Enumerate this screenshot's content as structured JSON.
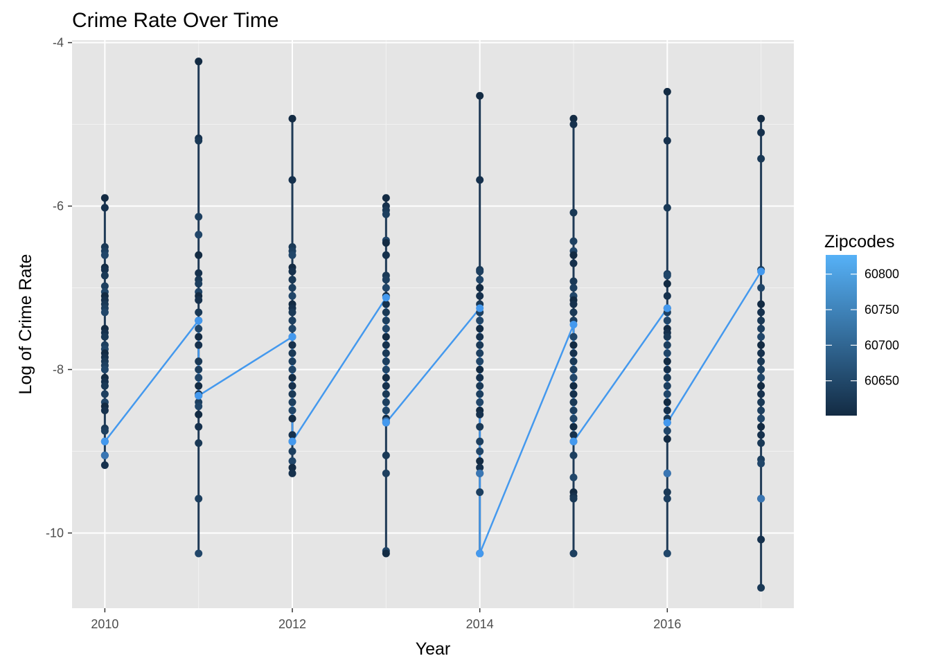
{
  "chart_data": {
    "type": "line",
    "title": "Crime Rate Over Time",
    "xlabel": "Year",
    "ylabel": "Log of Crime Rate",
    "xlim": [
      2009.65,
      2017.35
    ],
    "ylim": [
      -10.92,
      -3.97
    ],
    "x_ticks": [
      2010,
      2012,
      2014,
      2016
    ],
    "x_tick_labels": [
      "2010",
      "2012",
      "2014",
      "2016"
    ],
    "y_ticks": [
      -4,
      -6,
      -8,
      -10
    ],
    "y_tick_labels": [
      "-4",
      "-6",
      "-8",
      "-10"
    ],
    "grid": true,
    "panel_background": "#e5e5e5",
    "legend": {
      "title": "Zipcodes",
      "position": "right",
      "type": "colorbar",
      "range": [
        60601,
        60827
      ],
      "breaks": [
        60800,
        60750,
        60700,
        60650
      ],
      "labels": [
        "60800",
        "60750",
        "60700",
        "60650"
      ],
      "colors": [
        "#132b43",
        "#56b1f7"
      ]
    },
    "points_per_year": [
      {
        "x": 2010,
        "y": [
          -5.9,
          -6.02,
          -6.5,
          -6.55,
          -6.6,
          -6.75,
          -6.78,
          -6.85,
          -6.98,
          -7.05,
          -7.1,
          -7.15,
          -7.2,
          -7.25,
          -7.3,
          -7.5,
          -7.55,
          -7.6,
          -7.7,
          -7.75,
          -7.8,
          -7.85,
          -7.9,
          -7.95,
          -8.0,
          -8.1,
          -8.15,
          -8.2,
          -8.3,
          -8.4,
          -8.45,
          -8.5,
          -8.72,
          -8.75,
          -8.88,
          -9.05,
          -9.17
        ]
      },
      {
        "x": 2011,
        "y": [
          -4.23,
          -5.17,
          -5.2,
          -6.13,
          -6.35,
          -6.6,
          -6.82,
          -6.9,
          -6.95,
          -7.05,
          -7.1,
          -7.15,
          -7.3,
          -7.4,
          -7.5,
          -7.6,
          -7.7,
          -7.9,
          -8.0,
          -8.1,
          -8.2,
          -8.3,
          -8.32,
          -8.4,
          -8.45,
          -8.55,
          -8.7,
          -8.9,
          -9.58,
          -10.25
        ]
      },
      {
        "x": 2012,
        "y": [
          -4.93,
          -5.68,
          -6.5,
          -6.55,
          -6.6,
          -6.75,
          -6.8,
          -6.9,
          -7.0,
          -7.1,
          -7.2,
          -7.25,
          -7.3,
          -7.4,
          -7.5,
          -7.6,
          -7.7,
          -7.8,
          -7.9,
          -8.0,
          -8.1,
          -8.2,
          -8.3,
          -8.4,
          -8.5,
          -8.6,
          -8.8,
          -8.88,
          -9.0,
          -9.12,
          -9.2,
          -9.27
        ]
      },
      {
        "x": 2013,
        "y": [
          -5.9,
          -6.0,
          -6.05,
          -6.1,
          -6.42,
          -6.45,
          -6.6,
          -6.85,
          -6.9,
          -7.0,
          -7.1,
          -7.2,
          -7.3,
          -7.4,
          -7.5,
          -7.6,
          -7.7,
          -7.8,
          -7.9,
          -8.0,
          -8.1,
          -8.2,
          -8.3,
          -8.4,
          -8.5,
          -8.6,
          -8.65,
          -9.05,
          -9.27,
          -10.22,
          -10.25
        ]
      },
      {
        "x": 2014,
        "y": [
          -4.65,
          -5.68,
          -6.78,
          -6.8,
          -6.9,
          -7.0,
          -7.1,
          -7.2,
          -7.3,
          -7.4,
          -7.5,
          -7.6,
          -7.7,
          -7.8,
          -7.9,
          -8.0,
          -8.1,
          -8.2,
          -8.3,
          -8.4,
          -8.5,
          -8.55,
          -8.7,
          -8.88,
          -9.0,
          -9.12,
          -9.2,
          -9.27,
          -9.5,
          -10.25
        ]
      },
      {
        "x": 2015,
        "y": [
          -4.93,
          -5.0,
          -6.08,
          -6.43,
          -6.55,
          -6.6,
          -6.7,
          -6.92,
          -7.0,
          -7.1,
          -7.15,
          -7.2,
          -7.3,
          -7.4,
          -7.6,
          -7.7,
          -7.8,
          -7.9,
          -8.0,
          -8.1,
          -8.2,
          -8.3,
          -8.4,
          -8.5,
          -8.6,
          -8.7,
          -8.8,
          -8.88,
          -9.05,
          -9.32,
          -9.5,
          -9.55,
          -9.58,
          -10.25
        ]
      },
      {
        "x": 2016,
        "y": [
          -4.6,
          -5.2,
          -6.02,
          -6.83,
          -6.85,
          -6.95,
          -7.1,
          -7.25,
          -7.3,
          -7.4,
          -7.5,
          -7.55,
          -7.6,
          -7.7,
          -7.8,
          -7.9,
          -8.0,
          -8.1,
          -8.2,
          -8.3,
          -8.4,
          -8.5,
          -8.6,
          -8.65,
          -8.75,
          -8.85,
          -9.27,
          -9.5,
          -9.58,
          -10.25
        ]
      },
      {
        "x": 2017,
        "y": [
          -4.93,
          -5.1,
          -5.42,
          -6.78,
          -7.0,
          -7.2,
          -7.3,
          -7.4,
          -7.5,
          -7.6,
          -7.7,
          -7.8,
          -7.9,
          -8.0,
          -8.1,
          -8.2,
          -8.3,
          -8.4,
          -8.5,
          -8.6,
          -8.7,
          -8.8,
          -8.9,
          -9.1,
          -9.15,
          -9.58,
          -10.08,
          -10.67
        ]
      }
    ],
    "highlight_series": {
      "color": "#4499ee",
      "points": [
        {
          "x": 2010,
          "y": -8.88
        },
        {
          "x": 2011,
          "y": -7.4
        },
        {
          "x": 2011,
          "y": -8.32
        },
        {
          "x": 2012,
          "y": -7.6
        },
        {
          "x": 2012,
          "y": -8.88
        },
        {
          "x": 2013,
          "y": -7.12
        },
        {
          "x": 2013,
          "y": -8.65
        },
        {
          "x": 2014,
          "y": -7.25
        },
        {
          "x": 2014,
          "y": -10.25
        },
        {
          "x": 2015,
          "y": -7.45
        },
        {
          "x": 2015,
          "y": -8.88
        },
        {
          "x": 2016,
          "y": -7.25
        },
        {
          "x": 2016,
          "y": -8.65
        },
        {
          "x": 2017,
          "y": -6.8
        }
      ]
    },
    "light_points": [
      {
        "x": 2010,
        "y": -9.05
      },
      {
        "x": 2013,
        "y": -8.63
      },
      {
        "x": 2014,
        "y": -9.27
      },
      {
        "x": 2016,
        "y": -9.27
      },
      {
        "x": 2017,
        "y": -9.58
      }
    ]
  }
}
